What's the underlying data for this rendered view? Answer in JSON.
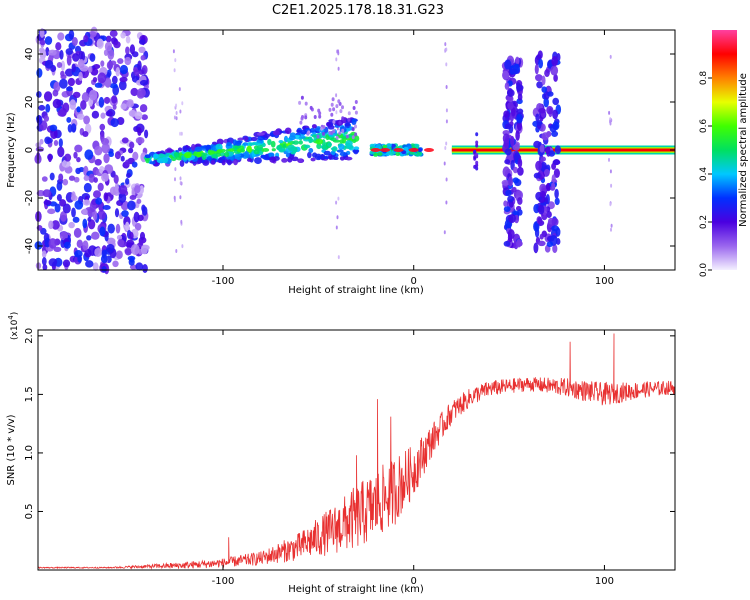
{
  "title": "C2E1.2025.178.18.31.G23",
  "chart_data": [
    {
      "type": "heatmap",
      "xlabel": "Height of straight line (km)",
      "ylabel": "Frequency (Hz)",
      "xlim": [
        -197,
        137
      ],
      "ylim": [
        -50,
        50
      ],
      "xticks": [
        -100,
        0,
        100
      ],
      "yticks": [
        -40,
        -20,
        0,
        20,
        40
      ],
      "colorbar": {
        "label": "Normalized spectral amplitude",
        "range": [
          0,
          1
        ],
        "ticks": [
          0.0,
          0.2,
          0.4,
          0.6,
          0.8
        ],
        "tick_labels": [
          "0.0",
          "0.2",
          "0.4",
          "0.6",
          "0.8"
        ],
        "colormap": [
          "#f4f0ff",
          "#9a66ee",
          "#4a00e0",
          "#0030ff",
          "#00c8ff",
          "#00e060",
          "#40ff00",
          "#e8ff00",
          "#ff8000",
          "#ff0000",
          "#ff40a0"
        ]
      },
      "features": [
        {
          "name": "broadband noise",
          "x_range": [
            -197,
            -140
          ],
          "freq_range": [
            -50,
            50
          ]
        },
        {
          "name": "rising tone",
          "x_range": [
            -140,
            -30
          ],
          "freq_range": [
            -8,
            12
          ]
        },
        {
          "name": "steady tone",
          "x_range": [
            -20,
            137
          ],
          "freq": 0
        },
        {
          "name": "burst",
          "x_range": [
            48,
            56
          ],
          "freq_range": [
            -40,
            38
          ]
        },
        {
          "name": "burst",
          "x_range": [
            64,
            76
          ],
          "freq_range": [
            -42,
            40
          ]
        }
      ]
    },
    {
      "type": "line",
      "xlabel": "Height of straight line (km)",
      "ylabel": "SNR (10 * v/v)",
      "multiplier_label": "(x10",
      "multiplier_exp": "4",
      "xlim": [
        -197,
        137
      ],
      "ylim": [
        0,
        2.05
      ],
      "xticks": [
        -100,
        0,
        100
      ],
      "yticks": [
        0.5,
        1.0,
        1.5,
        2.0
      ],
      "ytick_labels": [
        "0.5",
        "1.0",
        "1.5",
        "2.0"
      ],
      "line_color": "#e83030",
      "envelope": {
        "x": [
          -197,
          -160,
          -140,
          -120,
          -100,
          -80,
          -60,
          -40,
          -30,
          -20,
          -10,
          0,
          10,
          20,
          30,
          40,
          60,
          80,
          100,
          120,
          137
        ],
        "mean": [
          0.02,
          0.02,
          0.03,
          0.04,
          0.06,
          0.1,
          0.2,
          0.36,
          0.45,
          0.55,
          0.68,
          0.85,
          1.12,
          1.35,
          1.48,
          1.55,
          1.59,
          1.56,
          1.5,
          1.54,
          1.56
        ],
        "spread": [
          0.005,
          0.005,
          0.015,
          0.03,
          0.04,
          0.06,
          0.12,
          0.22,
          0.28,
          0.3,
          0.3,
          0.22,
          0.14,
          0.1,
          0.08,
          0.07,
          0.06,
          0.08,
          0.1,
          0.07,
          0.06
        ]
      },
      "peaks": [
        {
          "x": -97,
          "y": 0.28
        },
        {
          "x": -30,
          "y": 0.98
        },
        {
          "x": -19,
          "y": 1.46
        },
        {
          "x": -12,
          "y": 1.31
        },
        {
          "x": 82,
          "y": 1.95
        },
        {
          "x": 105,
          "y": 2.02
        }
      ]
    }
  ]
}
